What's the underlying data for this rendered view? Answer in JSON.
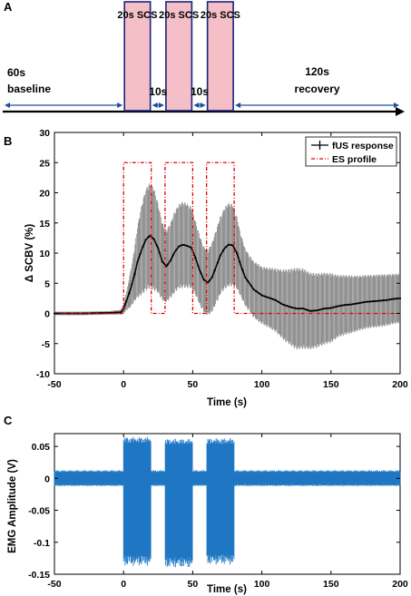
{
  "panels": {
    "a": "A",
    "b": "B",
    "c": "C"
  },
  "timeline": {
    "blocks": [
      {
        "label": "20s SCS",
        "start": 0,
        "end": 20
      },
      {
        "label": "20s SCS",
        "start": 30,
        "end": 50
      },
      {
        "label": "20s SCS",
        "start": 60,
        "end": 80
      }
    ],
    "annotations": [
      {
        "line1": "60s",
        "line2": "baseline",
        "from": -60,
        "to": 0
      },
      {
        "line1": "10s",
        "line2": "",
        "from": 20,
        "to": 30
      },
      {
        "line1": "10s",
        "line2": "",
        "from": 50,
        "to": 60
      },
      {
        "line1": "",
        "line2": "120s",
        "line3": "recovery",
        "from": 80,
        "to": 200
      }
    ],
    "block_fill": "#f4bfc6",
    "block_edge": "#1a237e",
    "arrow_color": "#1f4e9c"
  },
  "chart_data": [
    {
      "type": "line",
      "panel": "B",
      "xlabel": "Time (s)",
      "ylabel": "Δ SCBV (%)",
      "xlim": [
        -50,
        200
      ],
      "ylim": [
        -10,
        30
      ],
      "xticks": [
        -50,
        0,
        50,
        100,
        150,
        200
      ],
      "yticks": [
        -10,
        -5,
        0,
        5,
        10,
        15,
        20,
        25,
        30
      ],
      "grid": false,
      "legend": "top-right",
      "series": [
        {
          "name": "fUS response",
          "color": "#000000",
          "x": [
            -50,
            -30,
            -10,
            -2,
            0,
            2,
            5,
            8,
            10,
            13,
            16,
            19,
            22,
            25,
            28,
            31,
            34,
            37,
            40,
            43,
            46,
            49,
            52,
            55,
            58,
            61,
            64,
            67,
            70,
            73,
            76,
            79,
            82,
            85,
            88,
            91,
            94,
            97,
            100,
            105,
            110,
            115,
            120,
            125,
            130,
            135,
            140,
            145,
            150,
            155,
            160,
            165,
            170,
            175,
            180,
            185,
            190,
            195,
            200
          ],
          "values": [
            0,
            0,
            0.1,
            0.2,
            0.8,
            2,
            4,
            6.5,
            8.5,
            10.5,
            12.2,
            12.9,
            12.3,
            10.8,
            8.6,
            7.8,
            8.8,
            10.2,
            11.1,
            11.4,
            11.2,
            10.9,
            9.2,
            7.2,
            5.6,
            5.1,
            6,
            7.8,
            9.6,
            10.8,
            11.4,
            11.3,
            10,
            7.8,
            6,
            5,
            4,
            3.5,
            3,
            2.6,
            2.2,
            1.5,
            1.1,
            0.8,
            0.8,
            0.4,
            0.5,
            0.8,
            0.9,
            1.2,
            1.4,
            1.5,
            1.7,
            1.9,
            2,
            2.1,
            2.2,
            2.4,
            2.5
          ],
          "error": [
            0.3,
            0.3,
            0.3,
            0.4,
            0.8,
            1.5,
            3,
            4.5,
            6,
            7.5,
            8.5,
            8.8,
            8.5,
            7.5,
            6.5,
            6,
            6.3,
            6.8,
            7,
            7.2,
            7,
            6.8,
            6.2,
            5.8,
            5.5,
            5.5,
            5.8,
            6.2,
            6.5,
            6.8,
            7,
            6.8,
            6,
            5.2,
            4.8,
            4.7,
            4.7,
            4.8,
            4.8,
            5,
            5.3,
            5.8,
            6.3,
            6.8,
            6.7,
            6.4,
            6.2,
            6,
            5.8,
            5.2,
            5,
            4.8,
            4.6,
            4.5,
            4.4,
            4.4,
            4.3,
            4.2,
            4.1
          ]
        },
        {
          "name": "ES profile",
          "color": "#e00000",
          "x": [
            -50,
            0,
            0,
            20,
            20,
            30,
            30,
            50,
            50,
            60,
            60,
            80,
            80,
            200
          ],
          "values": [
            0,
            0,
            25,
            25,
            0,
            0,
            25,
            25,
            0,
            0,
            25,
            25,
            0,
            0
          ]
        }
      ]
    },
    {
      "type": "line",
      "panel": "C",
      "xlabel": "Time (s)",
      "ylabel": "EMG Amplitude (V)",
      "xlim": [
        -50,
        200
      ],
      "ylim": [
        -0.15,
        0.07
      ],
      "xticks": [
        -50,
        0,
        50,
        100,
        150,
        200
      ],
      "yticks": [
        -0.15,
        -0.1,
        -0.05,
        0,
        0.05
      ],
      "grid": false,
      "series": [
        {
          "color": "#1f77c4",
          "baseline_band": [
            -0.012,
            0.013
          ],
          "bursts": [
            {
              "start": 0,
              "end": 20,
              "min": -0.137,
              "max": 0.065
            },
            {
              "start": 30,
              "end": 50,
              "min": -0.14,
              "max": 0.062
            },
            {
              "start": 60,
              "end": 80,
              "min": -0.135,
              "max": 0.063
            }
          ]
        }
      ]
    }
  ]
}
